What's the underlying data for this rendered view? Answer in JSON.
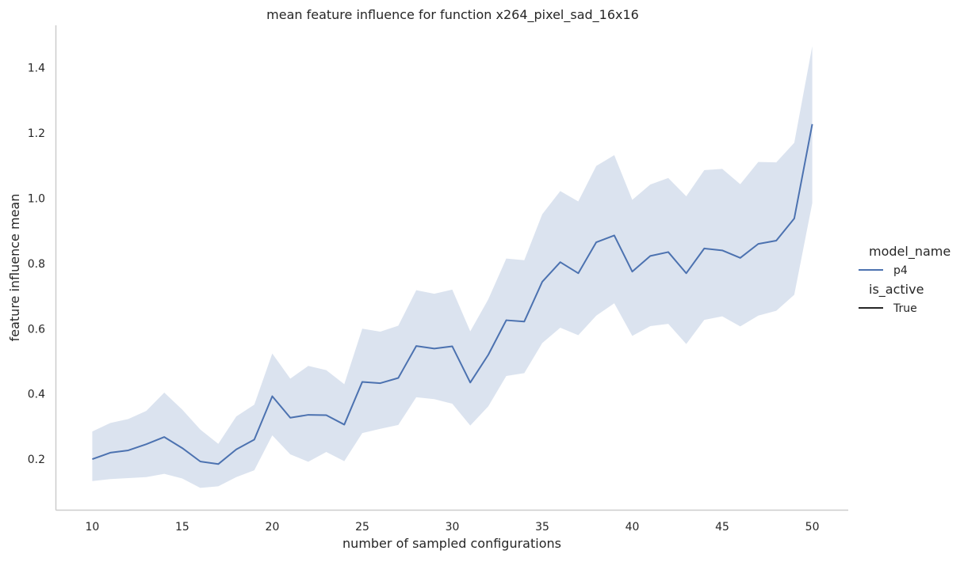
{
  "chart_data": {
    "type": "line",
    "title": "mean feature influence for function x264_pixel_sad_16x16",
    "xlabel": "number of sampled configurations",
    "ylabel": "feature influence mean",
    "xlim": [
      8,
      52
    ],
    "ylim": [
      0.045,
      1.53
    ],
    "xticks": [
      10,
      15,
      20,
      25,
      30,
      35,
      40,
      45,
      50
    ],
    "yticks": [
      0.2,
      0.4,
      0.6,
      0.8,
      1.0,
      1.2,
      1.4
    ],
    "grid": false,
    "legend": {
      "placement": "right",
      "sections": [
        {
          "title": "model_name",
          "entries": [
            {
              "label": "p4",
              "color": "#4c72b0"
            }
          ]
        },
        {
          "title": "is_active",
          "entries": [
            {
              "label": "True",
              "color": "#262626"
            }
          ]
        }
      ]
    },
    "series": [
      {
        "color": "#4c72b0",
        "band_color": "#4c72b0",
        "x": [
          10,
          11,
          12,
          13,
          14,
          15,
          16,
          17,
          18,
          19,
          20,
          21,
          22,
          23,
          24,
          25,
          26,
          27,
          28,
          29,
          30,
          31,
          32,
          33,
          34,
          35,
          36,
          37,
          38,
          39,
          40,
          41,
          42,
          43,
          44,
          45,
          46,
          47,
          48,
          49,
          50
        ],
        "mean": [
          0.2,
          0.22,
          0.227,
          0.246,
          0.268,
          0.234,
          0.193,
          0.185,
          0.23,
          0.26,
          0.393,
          0.327,
          0.336,
          0.335,
          0.306,
          0.437,
          0.433,
          0.449,
          0.547,
          0.539,
          0.546,
          0.435,
          0.52,
          0.626,
          0.622,
          0.744,
          0.804,
          0.77,
          0.865,
          0.886,
          0.775,
          0.823,
          0.835,
          0.77,
          0.846,
          0.84,
          0.817,
          0.86,
          0.87,
          0.938,
          1.227
        ],
        "lower": [
          0.133,
          0.139,
          0.142,
          0.145,
          0.155,
          0.141,
          0.112,
          0.117,
          0.145,
          0.166,
          0.273,
          0.215,
          0.192,
          0.222,
          0.194,
          0.28,
          0.293,
          0.305,
          0.39,
          0.384,
          0.37,
          0.303,
          0.362,
          0.455,
          0.464,
          0.556,
          0.603,
          0.58,
          0.64,
          0.678,
          0.578,
          0.608,
          0.615,
          0.553,
          0.627,
          0.638,
          0.607,
          0.64,
          0.655,
          0.704,
          0.985
        ],
        "upper": [
          0.285,
          0.311,
          0.323,
          0.348,
          0.404,
          0.352,
          0.291,
          0.247,
          0.331,
          0.367,
          0.524,
          0.447,
          0.486,
          0.473,
          0.43,
          0.6,
          0.591,
          0.609,
          0.718,
          0.707,
          0.72,
          0.592,
          0.69,
          0.815,
          0.81,
          0.951,
          1.022,
          0.99,
          1.099,
          1.132,
          0.995,
          1.042,
          1.062,
          1.006,
          1.086,
          1.09,
          1.043,
          1.111,
          1.11,
          1.17,
          1.466
        ]
      }
    ]
  }
}
